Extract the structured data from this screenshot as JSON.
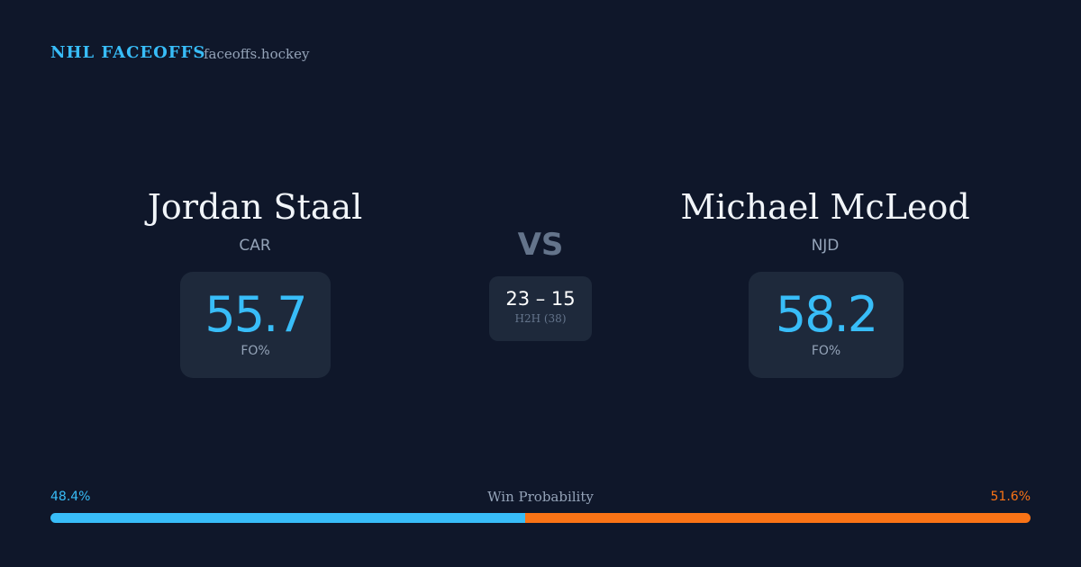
{
  "header": {
    "title": "NHL FACEOFFS",
    "site": "faceoffs.hockey"
  },
  "players": [
    {
      "name": "Jordan Staal",
      "team": "CAR",
      "fo_pct": 55.7,
      "fo_label": "FO%"
    },
    {
      "name": "Michael McLeod",
      "team": "NJD",
      "fo_pct": 58.2,
      "fo_label": "FO%"
    }
  ],
  "vs": "VS",
  "h2h": {
    "score": "23 – 15",
    "label": "H2H (38)"
  },
  "win_probability": {
    "title": "Win Probability",
    "left": {
      "value": 48.4,
      "label": "48.4%",
      "color": "#38bdf8"
    },
    "right": {
      "value": 51.6,
      "label": "51.6%",
      "color": "#f97316"
    }
  }
}
